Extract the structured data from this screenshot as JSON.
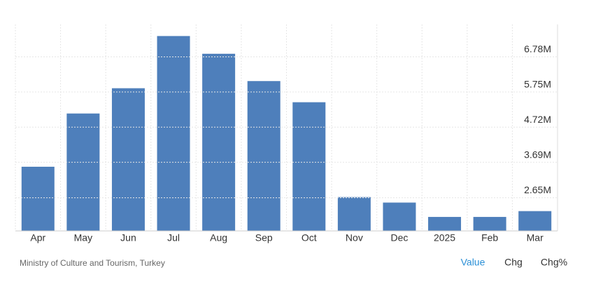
{
  "chart_data": {
    "type": "bar",
    "categories": [
      "Apr",
      "May",
      "Jun",
      "Jul",
      "Aug",
      "Sep",
      "Oct",
      "Nov",
      "Dec",
      "2025",
      "Feb",
      "Mar"
    ],
    "values": [
      3.56,
      5.12,
      5.86,
      7.39,
      6.87,
      6.07,
      5.45,
      2.67,
      2.51,
      2.09,
      2.09,
      2.26
    ],
    "color": "#4e7fbb",
    "ylim": [
      1.68,
      7.73
    ],
    "yticks": [
      {
        "value": 2.65,
        "label": "2.65M"
      },
      {
        "value": 3.69,
        "label": "3.69M"
      },
      {
        "value": 4.72,
        "label": "4.72M"
      },
      {
        "value": 5.75,
        "label": "5.75M"
      },
      {
        "value": 6.78,
        "label": "6.78M"
      }
    ],
    "grid": true,
    "source": "Ministry of Culture and Tourism, Turkey",
    "tabs": [
      "Value",
      "Chg",
      "Chg%"
    ]
  }
}
